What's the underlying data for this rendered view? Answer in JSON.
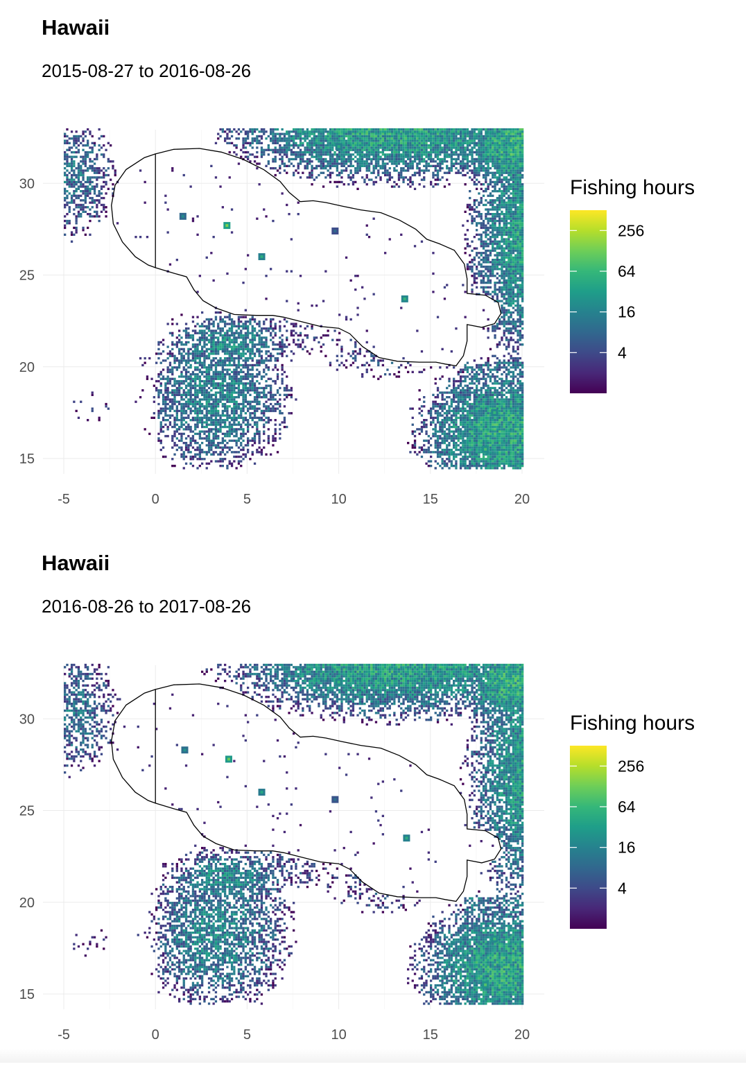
{
  "colors": {
    "viridis": [
      "#440154",
      "#482878",
      "#3e4a89",
      "#31688e",
      "#26828e",
      "#1f9e89",
      "#35b779",
      "#6ece58",
      "#b5de2b",
      "#fde725"
    ],
    "grid": "#ebebeb",
    "outline": "#000000",
    "axis_text": "#4d4d4d"
  },
  "chart_data": [
    {
      "type": "heatmap",
      "title": "Hawaii",
      "subtitle": "2015-08-27 to 2016-08-26",
      "xlabel": "",
      "ylabel": "",
      "xlim": [
        -5,
        20
      ],
      "ylim": [
        14.5,
        33
      ],
      "x_ticks": [
        "-5",
        "0",
        "5",
        "10",
        "15",
        "20"
      ],
      "y_ticks": [
        "15",
        "20",
        "25",
        "30"
      ],
      "grid": true,
      "legend": {
        "title": "Fishing hours",
        "position": "right",
        "scale": "log2",
        "range": [
          1,
          512
        ],
        "breaks": [
          "256",
          "64",
          "16",
          "4"
        ]
      },
      "hotspots": [
        {
          "x": 3.9,
          "y": 27.7,
          "hours": 150
        },
        {
          "x": 5.8,
          "y": 26.0,
          "hours": 50
        },
        {
          "x": 13.6,
          "y": 23.7,
          "hours": 60
        },
        {
          "x": 1.5,
          "y": 28.2,
          "hours": 20
        },
        {
          "x": 9.8,
          "y": 27.4,
          "hours": 8
        },
        {
          "x": 18.0,
          "y": 15.5,
          "hours": 80
        },
        {
          "x": 18.5,
          "y": 17.5,
          "hours": 60
        },
        {
          "x": 10.0,
          "y": 32.0,
          "hours": 50
        }
      ]
    },
    {
      "type": "heatmap",
      "title": "Hawaii",
      "subtitle": "2016-08-26 to 2017-08-26",
      "xlabel": "",
      "ylabel": "",
      "xlim": [
        -5,
        20
      ],
      "ylim": [
        14.5,
        33
      ],
      "x_ticks": [
        "-5",
        "0",
        "5",
        "10",
        "15",
        "20"
      ],
      "y_ticks": [
        "15",
        "20",
        "25",
        "30"
      ],
      "grid": true,
      "legend": {
        "title": "Fishing hours",
        "position": "right",
        "scale": "log2",
        "range": [
          1,
          512
        ],
        "breaks": [
          "256",
          "64",
          "16",
          "4"
        ]
      },
      "hotspots": [
        {
          "x": 4.0,
          "y": 27.8,
          "hours": 120
        },
        {
          "x": 5.8,
          "y": 26.0,
          "hours": 40
        },
        {
          "x": 13.7,
          "y": 23.5,
          "hours": 50
        },
        {
          "x": 1.6,
          "y": 28.3,
          "hours": 25
        },
        {
          "x": 9.8,
          "y": 25.6,
          "hours": 10
        },
        {
          "x": 18.0,
          "y": 15.5,
          "hours": 90
        },
        {
          "x": 18.5,
          "y": 18.0,
          "hours": 70
        },
        {
          "x": 10.0,
          "y": 32.0,
          "hours": 60
        }
      ]
    }
  ]
}
